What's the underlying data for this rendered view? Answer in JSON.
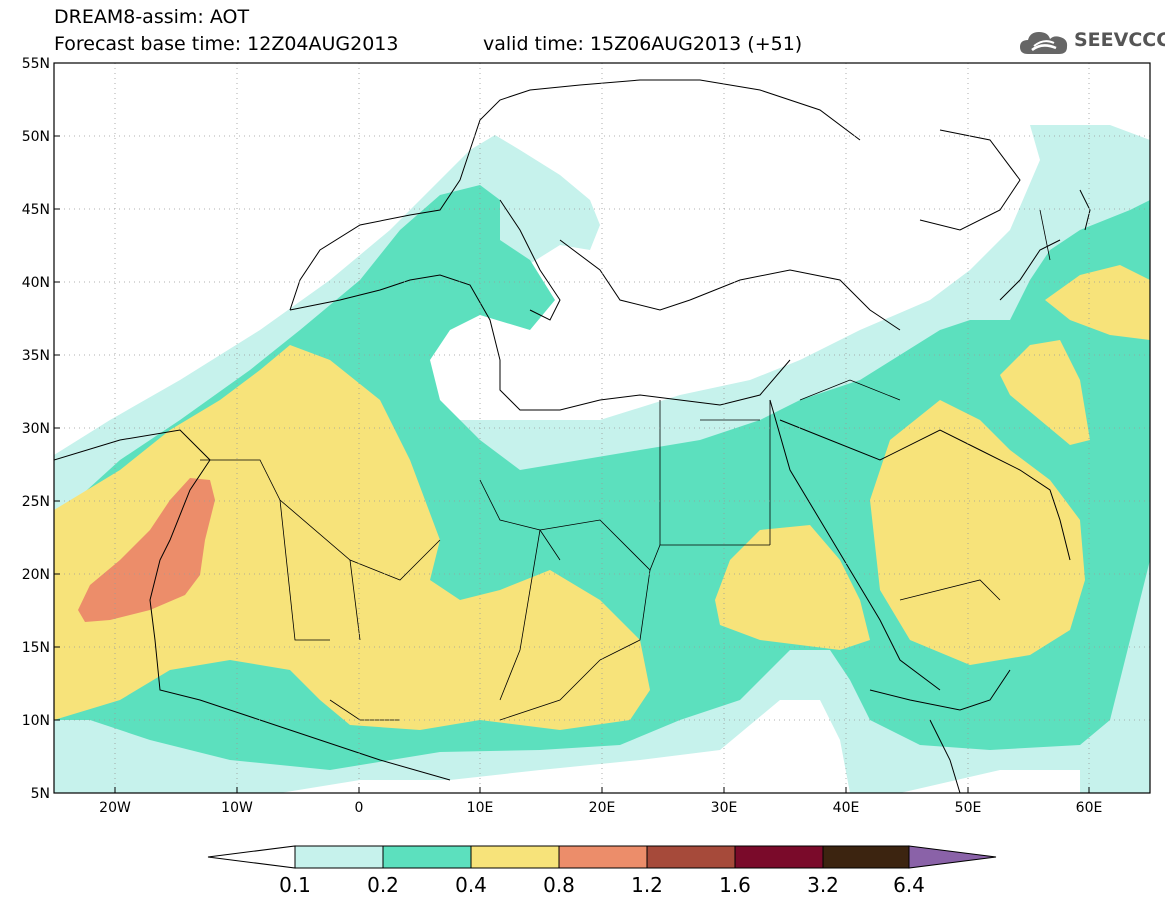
{
  "header": {
    "title": "DREAM8-assim: AOT",
    "base_time": "Forecast base time: 12Z04AUG2013",
    "valid_time": "valid time: 15Z06AUG2013 (+51)",
    "logo_text": "SEEVCCC",
    "logo_icon": "cloud-icon"
  },
  "map": {
    "extent": {
      "lon": [
        -25,
        65
      ],
      "lat": [
        5,
        55
      ]
    },
    "lat_ticks": [
      "55N",
      "50N",
      "45N",
      "40N",
      "35N",
      "30N",
      "25N",
      "20N",
      "15N",
      "10N",
      "5N"
    ],
    "lon_ticks": [
      "20W",
      "10W",
      "0",
      "10E",
      "20E",
      "30E",
      "40E",
      "50E",
      "60E"
    ],
    "gridlines": "dotted"
  },
  "colorbar": {
    "colors": [
      "#ffffff",
      "#c6f2ec",
      "#5ce0be",
      "#f7e37a",
      "#ec8d6a",
      "#a64a3a",
      "#7a0a2a",
      "#3c2410",
      "#8a62a8"
    ],
    "levels": [
      "0.1",
      "0.2",
      "0.4",
      "0.8",
      "1.2",
      "1.6",
      "3.2",
      "6.4"
    ]
  }
}
